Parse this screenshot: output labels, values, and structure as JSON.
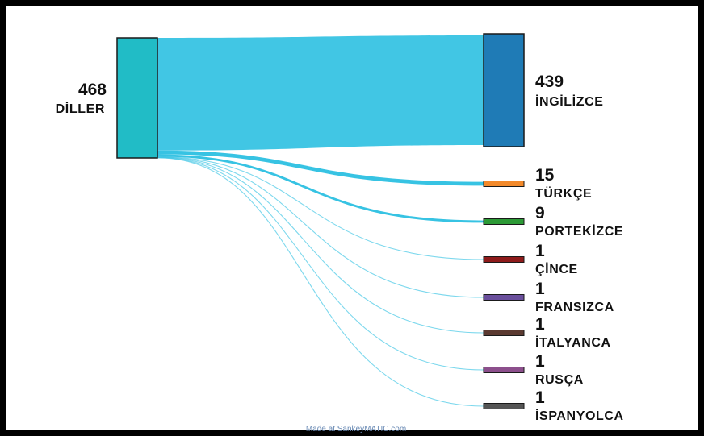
{
  "diagram": {
    "credit": "Made at SankeyMATIC.com",
    "source": {
      "value": "468",
      "label": "DİLLER",
      "color": "#21bcc6"
    },
    "targets": [
      {
        "value": "439",
        "label": "İNGİLİZCE",
        "color": "#1f7bb6"
      },
      {
        "value": "15",
        "label": "TÜRKÇE",
        "color": "#f2892a"
      },
      {
        "value": "9",
        "label": "PORTEKİZCE",
        "color": "#2c9a36"
      },
      {
        "value": "1",
        "label": "ÇİNCE",
        "color": "#8e1b1b"
      },
      {
        "value": "1",
        "label": "FRANSIZCA",
        "color": "#6a4f9c"
      },
      {
        "value": "1",
        "label": "İTALYANCA",
        "color": "#5b3a31"
      },
      {
        "value": "1",
        "label": "RUSÇA",
        "color": "#8c4f8c"
      },
      {
        "value": "1",
        "label": "İSPANYOLCA",
        "color": "#555555"
      }
    ],
    "flow_color": "#37c3e3"
  }
}
